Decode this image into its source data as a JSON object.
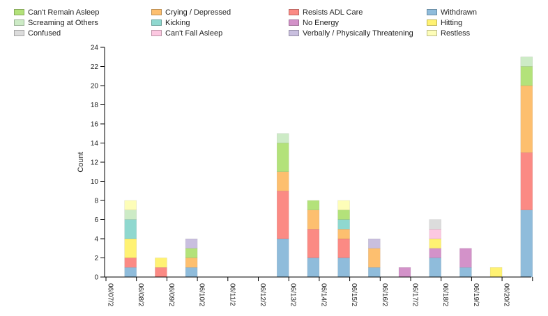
{
  "chart_data": {
    "type": "bar",
    "stacked": true,
    "ylabel": "Count",
    "ylim": [
      0,
      24
    ],
    "yticks": [
      0,
      2,
      4,
      6,
      8,
      10,
      12,
      14,
      16,
      18,
      20,
      22,
      24
    ],
    "categories": [
      "06/07/2",
      "06/08/2",
      "06/09/2",
      "06/10/2",
      "06/11/2",
      "06/12/2",
      "06/13/2",
      "06/14/2",
      "06/15/2",
      "06/16/2",
      "06/17/2",
      "06/18/2",
      "06/19/2",
      "06/20/2",
      ""
    ],
    "legend_position": "top",
    "series": [
      {
        "name": "Withdrawn",
        "color": "#8fbcdb",
        "values": [
          0,
          1,
          0,
          1,
          0,
          0,
          4,
          2,
          2,
          1,
          0,
          2,
          1,
          0,
          7
        ]
      },
      {
        "name": "Resists ADL Care",
        "color": "#fb8a84",
        "values": [
          0,
          1,
          1,
          0,
          0,
          0,
          5,
          3,
          2,
          0,
          0,
          0,
          0,
          0,
          6
        ]
      },
      {
        "name": "No Energy",
        "color": "#d392c9",
        "values": [
          0,
          0,
          0,
          0,
          0,
          0,
          0,
          0,
          0,
          0,
          1,
          1,
          2,
          0,
          0
        ]
      },
      {
        "name": "Crying / Depressed",
        "color": "#fdbf6f",
        "values": [
          0,
          0,
          0,
          1,
          0,
          0,
          2,
          2,
          1,
          2,
          0,
          0,
          0,
          0,
          7
        ]
      },
      {
        "name": "Hitting",
        "color": "#fff273",
        "values": [
          0,
          2,
          1,
          0,
          0,
          0,
          0,
          0,
          0,
          0,
          0,
          1,
          0,
          1,
          0
        ]
      },
      {
        "name": "Kicking",
        "color": "#8fd8cf",
        "values": [
          0,
          2,
          0,
          0,
          0,
          0,
          0,
          0,
          1,
          0,
          0,
          0,
          0,
          0,
          0
        ]
      },
      {
        "name": "Can't Remain Asleep",
        "color": "#b3e27a",
        "values": [
          0,
          0,
          0,
          1,
          0,
          0,
          3,
          1,
          1,
          0,
          0,
          0,
          0,
          0,
          2
        ]
      },
      {
        "name": "Can't Fall Asleep",
        "color": "#fcc8e1",
        "values": [
          0,
          0,
          0,
          0,
          0,
          0,
          0,
          0,
          0,
          0,
          0,
          1,
          0,
          0,
          0
        ]
      },
      {
        "name": "Screaming at Others",
        "color": "#cdebc6",
        "values": [
          0,
          1,
          0,
          0,
          0,
          0,
          1,
          0,
          0,
          0,
          0,
          0,
          0,
          0,
          1
        ]
      },
      {
        "name": "Verbally / Physically Threatening",
        "color": "#c9bfdf",
        "values": [
          0,
          0,
          0,
          1,
          0,
          0,
          0,
          0,
          0,
          1,
          0,
          0,
          0,
          0,
          0
        ]
      },
      {
        "name": "Restless",
        "color": "#fdfdb8",
        "values": [
          0,
          1,
          0,
          0,
          0,
          0,
          0,
          0,
          1,
          0,
          0,
          0,
          0,
          0,
          0
        ]
      },
      {
        "name": "Confused",
        "color": "#dcdcdc",
        "values": [
          0,
          0,
          0,
          0,
          0,
          0,
          0,
          0,
          0,
          0,
          0,
          1,
          0,
          0,
          0
        ]
      }
    ],
    "legend": [
      {
        "name": "Can't Remain Asleep",
        "color": "#b3e27a"
      },
      {
        "name": "Crying / Depressed",
        "color": "#fdbf6f"
      },
      {
        "name": "Resists ADL Care",
        "color": "#fb8a84"
      },
      {
        "name": "Withdrawn",
        "color": "#8fbcdb"
      },
      {
        "name": "Screaming at Others",
        "color": "#cdebc6"
      },
      {
        "name": "Kicking",
        "color": "#8fd8cf"
      },
      {
        "name": "No Energy",
        "color": "#d392c9"
      },
      {
        "name": "Hitting",
        "color": "#fff273"
      },
      {
        "name": "Confused",
        "color": "#dcdcdc"
      },
      {
        "name": "Can't Fall Asleep",
        "color": "#fcc8e1"
      },
      {
        "name": "Verbally / Physically Threatening",
        "color": "#c9bfdf"
      },
      {
        "name": "Restless",
        "color": "#fdfdb8"
      }
    ]
  }
}
